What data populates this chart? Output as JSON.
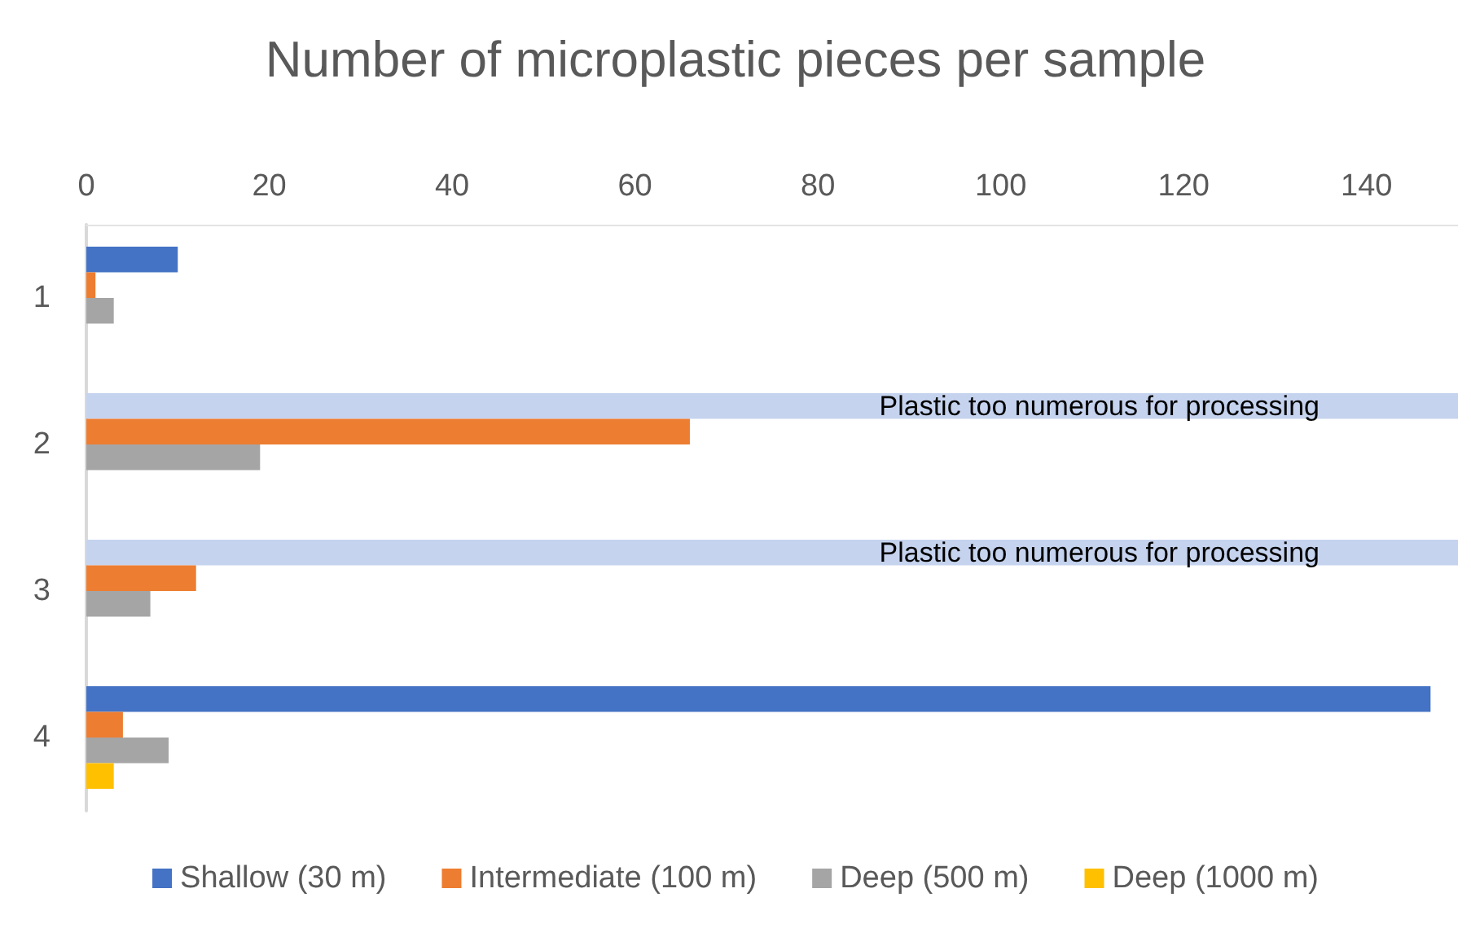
{
  "chart_data": {
    "type": "bar",
    "orientation": "horizontal",
    "title": "Number of microplastic pieces per sample",
    "categories": [
      "1",
      "2",
      "3",
      "4"
    ],
    "series": [
      {
        "name": "Shallow (30 m)",
        "color": "#4472c4",
        "colors": [
          "#4472c4",
          "#c5d3ee",
          "#c5d3ee",
          "#4472c4"
        ],
        "values": [
          10,
          150,
          150,
          147
        ],
        "value_labels": [
          null,
          "Plastic too numerous for processing",
          "Plastic too numerous for processing",
          null
        ]
      },
      {
        "name": "Intermediate (100 m)",
        "color": "#ed7d31",
        "values": [
          1,
          66,
          12,
          4
        ]
      },
      {
        "name": "Deep (500 m)",
        "color": "#a5a5a5",
        "values": [
          3,
          19,
          7,
          9
        ]
      },
      {
        "name": "Deep (1000 m)",
        "color": "#ffc000",
        "values": [
          null,
          null,
          null,
          3
        ]
      }
    ],
    "xlim": [
      0,
      150
    ],
    "xticks": [
      0,
      20,
      40,
      60,
      80,
      100,
      120,
      140
    ],
    "grid": false,
    "legend": "bottom"
  }
}
